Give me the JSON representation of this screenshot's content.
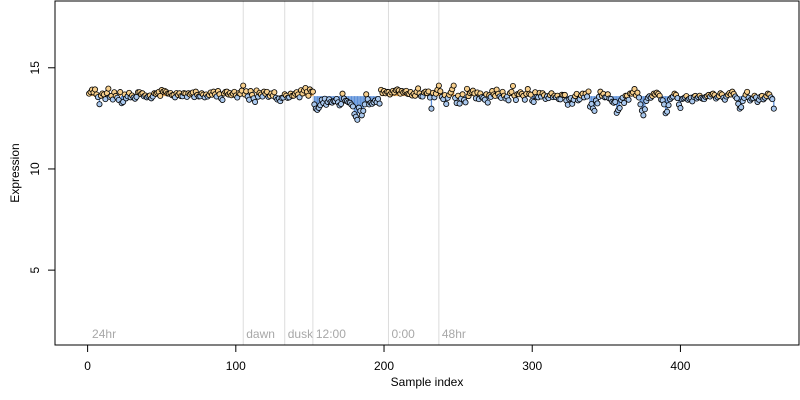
{
  "chart_data": {
    "type": "scatter",
    "title": "",
    "xlabel": "Sample index",
    "ylabel": "Expression",
    "xlim": [
      -22,
      480
    ],
    "ylim": [
      1.3,
      18.3
    ],
    "x_ticks": [
      0,
      100,
      200,
      300,
      400
    ],
    "y_ticks": [
      5,
      10,
      15
    ],
    "baseline": 13.6,
    "grid": false,
    "region_lines": [
      {
        "x": 105,
        "label": "dawn"
      },
      {
        "x": 133,
        "label": "dusk"
      },
      {
        "x": 152,
        "label": "12:00"
      },
      {
        "x": 203,
        "label": "0:00"
      },
      {
        "x": 237,
        "label": "48hr"
      }
    ],
    "start_label": {
      "x": 3,
      "label": "24hr"
    },
    "point_fill": {
      "above": "#f7cf8c",
      "below": "#a9c8ee"
    },
    "bar_color": {
      "above": "#f0a23c",
      "below": "#5b8fd8"
    },
    "series": [
      {
        "x_start": 1,
        "x_step": 1,
        "values": [
          13.72,
          13.8,
          13.92,
          13.78,
          13.93,
          13.68,
          13.55,
          13.2,
          13.62,
          13.73,
          13.68,
          13.45,
          13.75,
          13.97,
          13.56,
          13.61,
          13.43,
          13.79,
          13.61,
          13.52,
          13.41,
          13.8,
          13.25,
          13.31,
          13.68,
          13.49,
          13.59,
          13.76,
          13.54,
          13.63,
          13.53,
          13.47,
          13.56,
          13.79,
          13.79,
          13.7,
          13.74,
          13.59,
          13.63,
          13.54,
          13.59,
          13.63,
          13.49,
          13.58,
          13.74,
          13.71,
          13.76,
          13.81,
          13.61,
          13.9,
          13.82,
          13.86,
          13.81,
          13.73,
          13.72,
          13.75,
          13.64,
          13.65,
          13.54,
          13.75,
          13.66,
          13.74,
          13.6,
          13.59,
          13.75,
          13.72,
          13.56,
          13.74,
          13.68,
          13.74,
          13.78,
          13.55,
          13.82,
          13.66,
          13.58,
          13.59,
          13.74,
          13.67,
          13.54,
          13.68,
          13.58,
          13.65,
          13.78,
          13.67,
          13.82,
          13.69,
          13.58,
          13.85,
          13.69,
          13.49,
          13.41,
          13.73,
          13.81,
          13.82,
          13.68,
          13.75,
          13.64,
          13.72,
          13.81,
          13.63,
          13.53,
          13.75,
          13.71,
          13.87,
          14.12,
          13.68,
          13.84,
          13.58,
          13.42,
          13.85,
          13.66,
          13.49,
          13.31,
          13.88,
          13.57,
          13.76,
          13.68,
          13.58,
          13.82,
          13.72,
          13.81,
          13.56,
          13.61,
          13.73,
          13.62,
          13.79,
          13.52,
          13.43,
          13.48,
          13.35,
          13.51,
          13.53,
          13.69,
          13.62,
          13.51,
          13.54,
          13.72,
          13.61,
          13.62,
          13.72,
          13.79,
          13.68,
          13.54,
          13.89,
          13.73,
          13.88,
          14,
          13.81,
          13.62,
          13.93,
          13.82,
          13.82,
          13.19,
          12.98,
          12.92,
          13.02,
          13.15,
          13.42,
          13.26,
          13.47,
          13.17,
          13.31,
          13.44,
          13.31,
          13.28,
          13.35,
          13.35,
          13.46,
          13.29,
          13.14,
          13.21,
          13.72,
          13.48,
          13.37,
          13.35,
          13.29,
          13.27,
          13.18,
          13.09,
          12.71,
          12.58,
          12.43,
          13.03,
          12.87,
          12.65,
          12.87,
          13.19,
          13.69,
          13.45,
          13.19,
          13.27,
          13.22,
          13.29,
          13.38,
          13.3,
          13.46,
          13.23,
          13.91,
          13.75,
          13.85,
          13.74,
          13.81,
          13.8,
          13.68,
          13.78,
          13.86,
          13.78,
          13.89,
          13.93,
          13.88,
          13.72,
          13.85,
          13.78,
          13.83,
          13.86,
          13.71,
          13.7,
          13.8,
          13.63,
          13.71,
          13.62,
          13.81,
          13.98,
          13.73,
          13.59,
          13.58,
          13.78,
          13.82,
          13.75,
          13.83,
          13.53,
          12.98,
          13.76,
          13.54,
          13.72,
          13.91,
          14.12,
          13.84,
          13.56,
          13.45,
          13.65,
          13.21,
          13.51,
          13.66,
          13.78,
          13.94,
          14.12,
          13.51,
          13.26,
          13.62,
          13.23,
          13.47,
          13.69,
          13.41,
          13.29,
          13.96,
          13.6,
          13.75,
          13.81,
          13.87,
          13.73,
          13.49,
          13.78,
          13.45,
          13.73,
          13.55,
          13.51,
          13.42,
          13.69,
          13.28,
          13.64,
          13.56,
          13.85,
          13.68,
          13.61,
          13.92,
          13.71,
          13.58,
          13.51,
          13.81,
          13.62,
          13.48,
          13.57,
          13.39,
          13.75,
          13.81,
          14.1,
          13.62,
          13.41,
          13.7,
          13.69,
          13.79,
          13.71,
          13.61,
          13.42,
          13.71,
          13.95,
          13.71,
          13.67,
          13.37,
          13.31,
          13.79,
          13.56,
          13.54,
          13.76,
          13.58,
          13.74,
          13.64,
          13.46,
          13.59,
          13.5,
          13.65,
          13.74,
          13.55,
          13.62,
          13.55,
          13.62,
          13.45,
          13.44,
          13.67,
          13.65,
          13.66,
          13.38,
          13.17,
          13.45,
          13.5,
          13.22,
          13.42,
          13.6,
          13.71,
          13.39,
          13.45,
          13.63,
          13.72,
          13.54,
          13.72,
          13.58,
          13.83,
          13.08,
          13.21,
          12.99,
          12.87,
          13.38,
          13.24,
          13.56,
          13.82,
          13.62,
          13.71,
          13.54,
          13.55,
          13.69,
          13.48,
          13.46,
          13.32,
          13.27,
          13.31,
          12.77,
          12.91,
          13.01,
          13.41,
          13.52,
          13.26,
          13.62,
          13.62,
          13.42,
          13.73,
          13.72,
          13.79,
          13.95,
          13.64,
          13.77,
          13.53,
          13.19,
          12.88,
          12.65,
          12.95,
          13.36,
          13.51,
          13.59,
          13.52,
          13.61,
          13.72,
          13.68,
          13.77,
          13.71,
          13.62,
          13.42,
          13.39,
          13.19,
          12.75,
          12.83,
          13.15,
          13.45,
          13.53,
          13.58,
          13.72,
          13.66,
          13.5,
          13.18,
          13.01,
          13.45,
          13.49,
          13.54,
          13.6,
          13.42,
          13.47,
          13.52,
          13.34,
          13.56,
          13.61,
          13.48,
          13.55,
          13.62,
          13.51,
          13.47,
          13.45,
          13.56,
          13.6,
          13.66,
          13.58,
          13.68,
          13.72,
          13.65,
          13.48,
          13.55,
          13.61,
          13.74,
          13.68,
          13.52,
          13.42,
          13.58,
          13.66,
          13.75,
          13.68,
          13.82,
          13.71,
          13.58,
          13.49,
          13.22,
          12.98,
          13.05,
          13.35,
          13.51,
          13.67,
          13.81,
          13.52,
          13.38,
          13.47,
          13.5,
          13.62,
          13.54,
          13.31,
          13.42,
          13.57,
          13.61,
          13.44,
          13.52,
          13.61,
          13.72,
          13.68,
          13.54,
          13.45,
          12.98
        ]
      }
    ]
  }
}
